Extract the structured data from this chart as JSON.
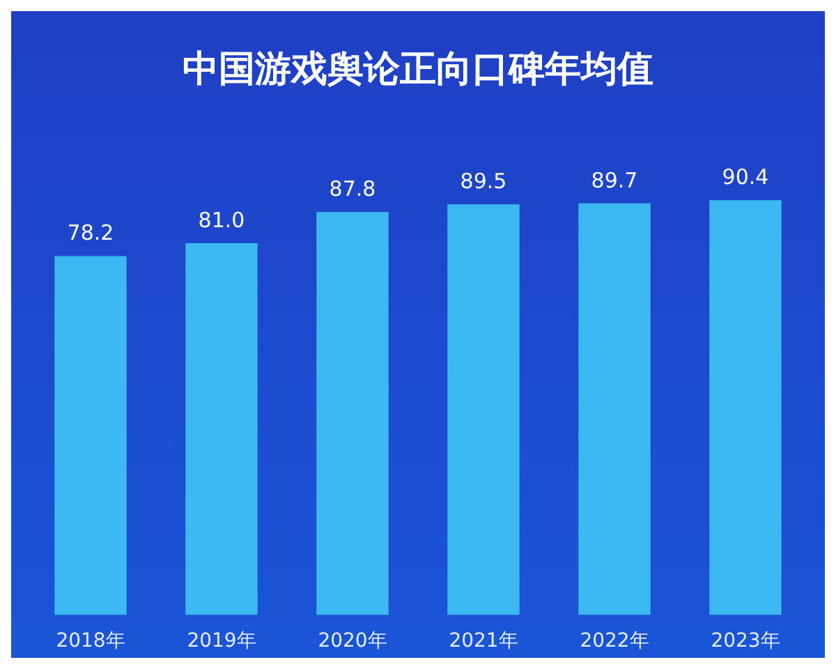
{
  "chart_data": {
    "type": "bar",
    "title": "中国游戏舆论正向口碑年均值",
    "categories": [
      "2018年",
      "2019年",
      "2020年",
      "2021年",
      "2022年",
      "2023年"
    ],
    "values": [
      78.2,
      81.0,
      87.8,
      89.5,
      89.7,
      90.4
    ],
    "value_labels": [
      "78.2",
      "81.0",
      "87.8",
      "89.5",
      "89.7",
      "90.4"
    ],
    "color": "#3cb8f2",
    "grid": false,
    "legend": false
  }
}
